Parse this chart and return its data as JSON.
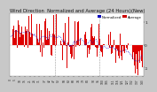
{
  "title": "Wind Direction  Normalized and Average (24 Hours)(New)",
  "title_fontsize": 3.8,
  "bg_color": "#c8c8c8",
  "plot_bg_color": "#ffffff",
  "bar_color": "#dd0000",
  "line_color": "#0000cc",
  "legend_norm_color": "#0000bb",
  "legend_avg_color": "#cc0000",
  "legend_norm_label": "Normalized",
  "legend_avg_label": "Average",
  "ylim": [
    -1.4,
    1.4
  ],
  "ytick_vals": [
    -1,
    0,
    1
  ],
  "ylabel_ticks": [
    "-1",
    "0",
    "1"
  ],
  "n_bars": 144,
  "seed": 7
}
